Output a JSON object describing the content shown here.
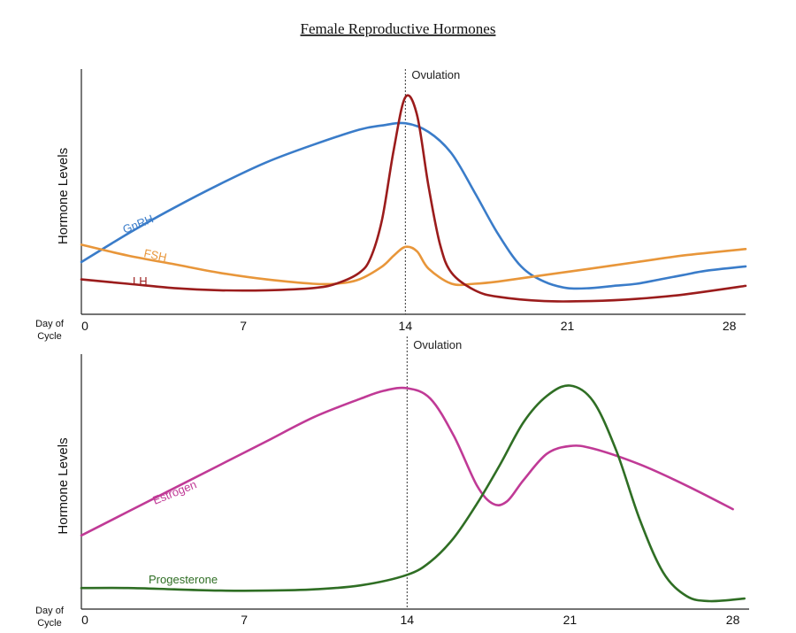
{
  "title": "Female Reproductive Hormones",
  "chart_data": [
    {
      "type": "line",
      "ylabel": "Hormone Levels",
      "xlabel": "Day of Cycle",
      "x_ticks": [
        "0",
        "7",
        "14",
        "21",
        "28"
      ],
      "xlim": [
        0,
        28.7
      ],
      "ylim": [
        0,
        1.0
      ],
      "annotation": {
        "text": "Ovulation",
        "x": 14
      },
      "series": [
        {
          "name": "GnRH",
          "color": "#3a7cc9",
          "x": [
            0,
            2,
            4,
            6,
            8,
            10,
            12,
            13,
            14,
            15,
            16,
            17,
            18,
            19,
            20,
            21,
            22,
            23,
            24,
            25,
            26,
            27,
            28.7
          ],
          "values": [
            0.2,
            0.33,
            0.45,
            0.56,
            0.66,
            0.74,
            0.81,
            0.83,
            0.84,
            0.8,
            0.7,
            0.52,
            0.33,
            0.18,
            0.11,
            0.08,
            0.08,
            0.09,
            0.1,
            0.12,
            0.14,
            0.16,
            0.18
          ]
        },
        {
          "name": "FSH",
          "color": "#e8963a",
          "x": [
            0,
            2,
            4,
            6,
            8,
            10,
            11,
            12,
            13,
            13.5,
            14,
            14.5,
            15,
            16,
            17,
            18,
            20,
            22,
            24,
            26,
            28.7
          ],
          "values": [
            0.28,
            0.23,
            0.19,
            0.15,
            0.12,
            0.1,
            0.1,
            0.12,
            0.18,
            0.23,
            0.27,
            0.25,
            0.17,
            0.1,
            0.1,
            0.11,
            0.14,
            0.17,
            0.2,
            0.23,
            0.26
          ]
        },
        {
          "name": "LH",
          "color": "#9b1c1c",
          "x": [
            0,
            2,
            4,
            6,
            8,
            10,
            11,
            12,
            12.5,
            13,
            13.5,
            14,
            14.5,
            15,
            15.5,
            16,
            17,
            18,
            20,
            22,
            24,
            26,
            28.7
          ],
          "values": [
            0.12,
            0.1,
            0.08,
            0.07,
            0.07,
            0.08,
            0.1,
            0.15,
            0.22,
            0.4,
            0.72,
            0.96,
            0.88,
            0.55,
            0.28,
            0.15,
            0.07,
            0.04,
            0.02,
            0.02,
            0.03,
            0.05,
            0.09
          ]
        }
      ],
      "series_labels": [
        {
          "text": "GnRH",
          "series": "GnRH"
        },
        {
          "text": "FSH",
          "series": "FSH"
        },
        {
          "text": "LH",
          "series": "LH"
        }
      ]
    },
    {
      "type": "line",
      "ylabel": "Hormone Levels",
      "xlabel": "Day of Cycle",
      "x_ticks": [
        "0",
        "7",
        "14",
        "21",
        "28"
      ],
      "xlim": [
        0,
        28.7
      ],
      "ylim": [
        0,
        1.0
      ],
      "annotation": {
        "text": "Ovulation",
        "x": 14
      },
      "series": [
        {
          "name": "Estrogen",
          "color": "#c03a96",
          "x": [
            0,
            2,
            4,
            6,
            8,
            10,
            12,
            13,
            14,
            15,
            16,
            17,
            17.7,
            18.3,
            19,
            20,
            21,
            22,
            24,
            26,
            28
          ],
          "values": [
            0.26,
            0.35,
            0.44,
            0.53,
            0.62,
            0.71,
            0.78,
            0.81,
            0.82,
            0.78,
            0.64,
            0.45,
            0.38,
            0.39,
            0.47,
            0.57,
            0.6,
            0.59,
            0.53,
            0.45,
            0.36
          ]
        },
        {
          "name": "Progesterone",
          "color": "#2f6e24",
          "x": [
            0,
            2,
            4,
            6,
            8,
            10,
            12,
            14,
            15,
            16,
            17,
            18,
            19,
            20,
            21,
            22,
            23,
            24,
            25,
            26,
            27,
            28.5
          ],
          "values": [
            0.06,
            0.06,
            0.055,
            0.05,
            0.05,
            0.055,
            0.07,
            0.11,
            0.16,
            0.25,
            0.38,
            0.53,
            0.69,
            0.79,
            0.83,
            0.77,
            0.58,
            0.32,
            0.12,
            0.03,
            0.01,
            0.02
          ]
        }
      ],
      "series_labels": [
        {
          "text": "Estrogen",
          "series": "Estrogen"
        },
        {
          "text": "Progesterone",
          "series": "Progesterone"
        }
      ]
    }
  ]
}
